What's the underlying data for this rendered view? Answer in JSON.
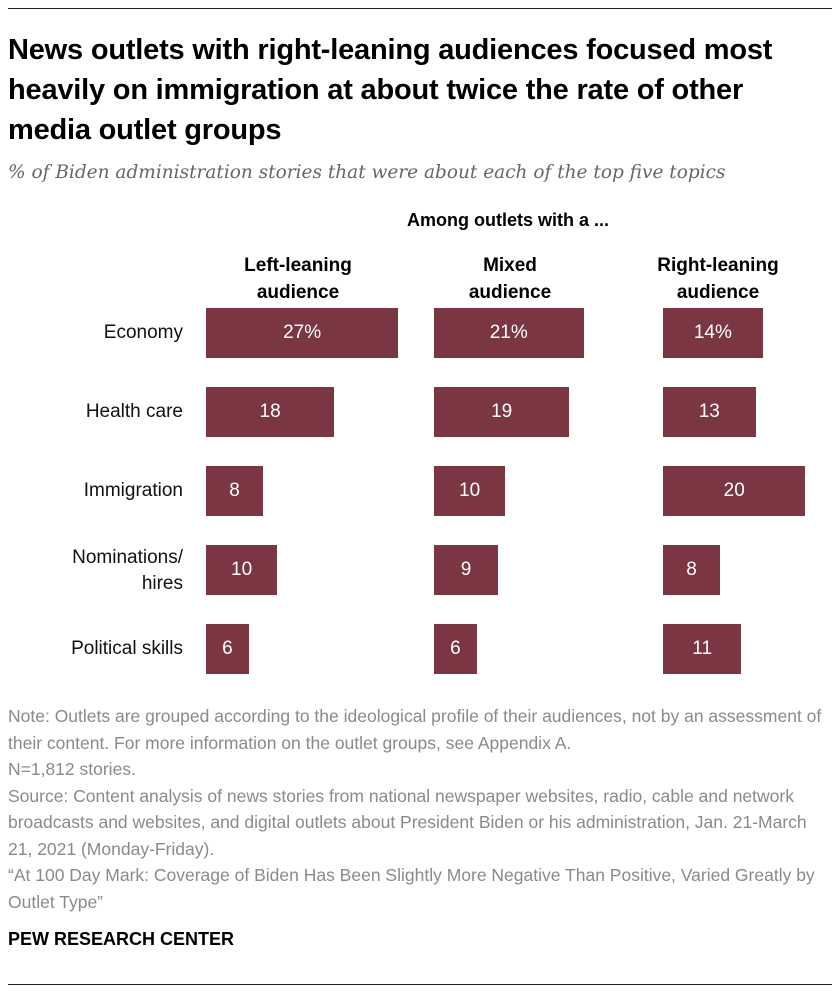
{
  "chart_data": {
    "type": "bar",
    "title": "News outlets with right-leaning audiences focused most heavily on immigration at about twice the rate of other media outlet groups",
    "subtitle": "% of Biden administration stories that were about each of the top five topics",
    "group_label": "Among outlets with a ...",
    "categories": [
      "Economy",
      "Health care",
      "Immigration",
      "Nominations/ hires",
      "Political skills"
    ],
    "series": [
      {
        "name": "Left-leaning audience",
        "values": [
          27,
          18,
          8,
          10,
          6
        ],
        "labels": [
          "27%",
          "18",
          "8",
          "10",
          "6"
        ]
      },
      {
        "name": "Mixed audience",
        "values": [
          21,
          19,
          10,
          9,
          6
        ],
        "labels": [
          "21%",
          "19",
          "10",
          "9",
          "6"
        ]
      },
      {
        "name": "Right-leaning audience",
        "values": [
          14,
          13,
          20,
          8,
          11
        ],
        "labels": [
          "14%",
          "13",
          "20",
          "8",
          "11"
        ]
      }
    ],
    "xlabel": "",
    "ylabel": "",
    "color": "#7a3742"
  },
  "notes": [
    "Note: Outlets are grouped according to the ideological profile of their audiences, not by an assessment of their content. For more information on the outlet groups, see Appendix A.",
    "N=1,812 stories.",
    "Source: Content analysis of news stories from national newspaper websites, radio, cable and network broadcasts and websites, and digital outlets about President Biden or his administration, Jan. 21-March 21, 2021 (Monday-Friday).",
    "“At 100 Day Mark: Coverage of Biden Has Been Slightly More Negative Than Positive, Varied Greatly by Outlet Type”"
  ],
  "brand": "PEW RESEARCH CENTER"
}
